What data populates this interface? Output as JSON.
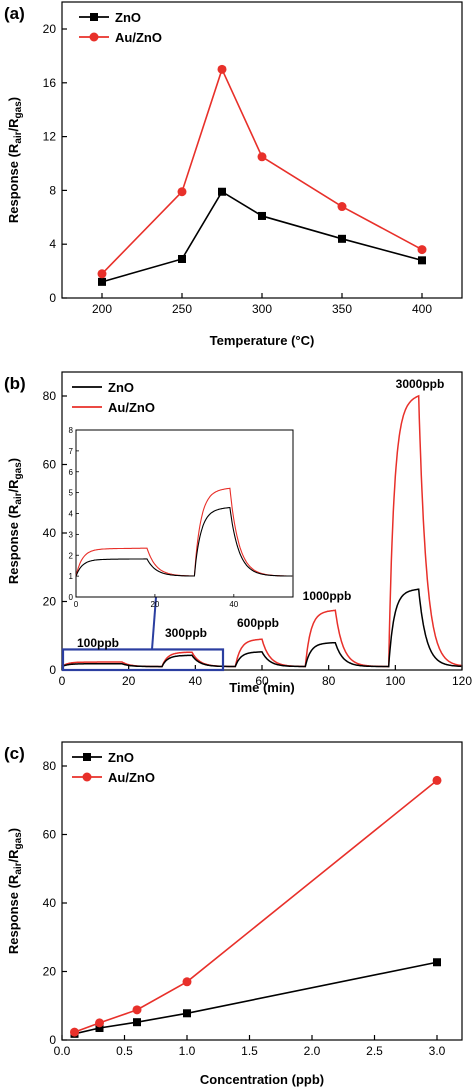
{
  "chart_data": [
    {
      "panel": "(a)",
      "type": "line",
      "xlabel": "Temperature (°C)",
      "ylabel": "Response (Rair/Rgas)",
      "xlim": [
        175,
        425
      ],
      "ylim": [
        0,
        20
      ],
      "xticks": [
        200,
        250,
        300,
        350,
        400
      ],
      "yticks": [
        0,
        4,
        8,
        12,
        16,
        20
      ],
      "legend_position": "top-left",
      "series": [
        {
          "name": "ZnO",
          "color": "#000000",
          "marker": "square",
          "x": [
            200,
            250,
            275,
            300,
            350,
            400
          ],
          "y": [
            1.2,
            2.9,
            7.9,
            6.1,
            4.4,
            2.8
          ]
        },
        {
          "name": "Au/ZnO",
          "color": "#e8302a",
          "marker": "circle",
          "x": [
            200,
            250,
            275,
            300,
            350,
            400
          ],
          "y": [
            1.8,
            7.9,
            17.0,
            10.5,
            6.8,
            3.6
          ]
        }
      ]
    },
    {
      "panel": "(b)",
      "type": "line",
      "xlabel": "Time (min)",
      "ylabel": "Response (Rair/Rgas)",
      "xlim": [
        0,
        120
      ],
      "ylim": [
        0,
        82
      ],
      "xticks": [
        0,
        20,
        40,
        60,
        80,
        100,
        120
      ],
      "yticks": [
        0,
        20,
        40,
        60,
        80
      ],
      "legend_position": "top-left",
      "annotations": [
        "100ppb",
        "300ppb",
        "600ppb",
        "1000ppb",
        "3000ppb"
      ],
      "pulses": [
        {
          "label": "100ppb",
          "on": 0,
          "off": 18,
          "zno": 1.8,
          "auzno": 2.3
        },
        {
          "label": "300ppb",
          "on": 30,
          "off": 39,
          "zno": 4.2,
          "auzno": 5.1
        },
        {
          "label": "600ppb",
          "on": 52,
          "off": 60,
          "zno": 5.2,
          "auzno": 8.8
        },
        {
          "label": "1000ppb",
          "on": 73,
          "off": 82,
          "zno": 7.8,
          "auzno": 17.0
        },
        {
          "label": "3000ppb",
          "on": 98,
          "off": 107,
          "zno": 23.0,
          "auzno": 78.0
        }
      ],
      "inset": {
        "xlim": [
          0,
          55
        ],
        "ylim": [
          0,
          8
        ],
        "xticks": [
          0,
          20,
          40
        ],
        "yticks": [
          0,
          1,
          2,
          3,
          4,
          5,
          6,
          7,
          8
        ]
      },
      "series": [
        {
          "name": "ZnO",
          "color": "#000000"
        },
        {
          "name": "Au/ZnO",
          "color": "#e8302a"
        }
      ]
    },
    {
      "panel": "(c)",
      "type": "line",
      "xlabel": "Concentration (ppb)",
      "ylabel": "Response (Rair/Rgas)",
      "xlim": [
        0,
        3.2
      ],
      "ylim": [
        0,
        82
      ],
      "xticks": [
        0.0,
        0.5,
        1.0,
        1.5,
        2.0,
        2.5,
        3.0
      ],
      "yticks": [
        0,
        20,
        40,
        60,
        80
      ],
      "legend_position": "top-left",
      "series": [
        {
          "name": "ZnO",
          "color": "#000000",
          "marker": "square",
          "x": [
            0.1,
            0.3,
            0.6,
            1.0,
            3.0
          ],
          "y": [
            1.8,
            3.5,
            5.2,
            7.8,
            22.7
          ]
        },
        {
          "name": "Au/ZnO",
          "color": "#e8302a",
          "marker": "circle",
          "x": [
            0.1,
            0.3,
            0.6,
            1.0,
            3.0
          ],
          "y": [
            2.3,
            5.0,
            8.8,
            17.0,
            75.8
          ]
        }
      ]
    }
  ]
}
